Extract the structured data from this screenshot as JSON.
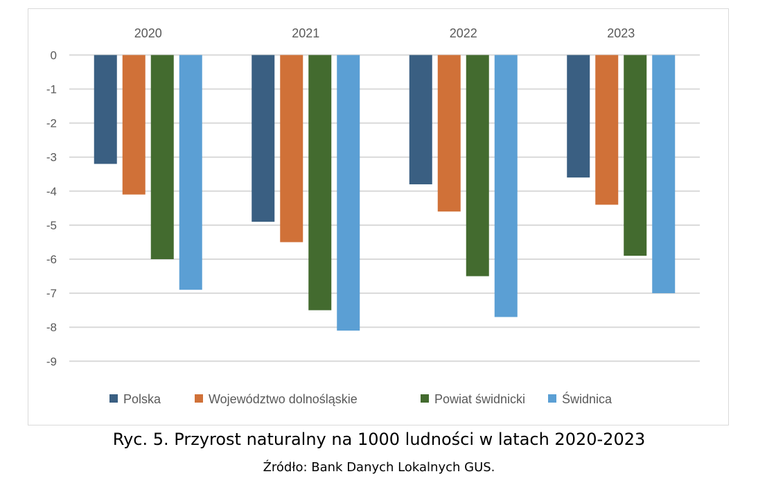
{
  "chart_data": {
    "type": "bar",
    "title": "Ryc. 5. Przyrost naturalny na 1000 ludności w latach 2020-2023",
    "source": "Źródło: Bank Danych Lokalnych GUS.",
    "categories": [
      "2020",
      "2021",
      "2022",
      "2023"
    ],
    "series": [
      {
        "name": "Polska",
        "color": "#3a5f82",
        "values": [
          -3.2,
          -4.9,
          -3.8,
          -3.6
        ]
      },
      {
        "name": "Województwo dolnośląskie",
        "color": "#d07138",
        "values": [
          -4.1,
          -5.5,
          -4.6,
          -4.4
        ]
      },
      {
        "name": "Powiat świdnicki",
        "color": "#436b2f",
        "values": [
          -6.0,
          -7.5,
          -6.5,
          -5.9
        ]
      },
      {
        "name": "Świdnica",
        "color": "#5b9fd4",
        "values": [
          -6.9,
          -8.1,
          -7.7,
          -7.0
        ]
      }
    ],
    "ylim": [
      -9,
      0
    ],
    "yticks": [
      "0",
      "-1",
      "-2",
      "-3",
      "-4",
      "-5",
      "-6",
      "-7",
      "-8",
      "-9"
    ],
    "xlabel": "",
    "ylabel": "",
    "grid": true,
    "legend": "bottom",
    "category_axis_position": "top"
  }
}
